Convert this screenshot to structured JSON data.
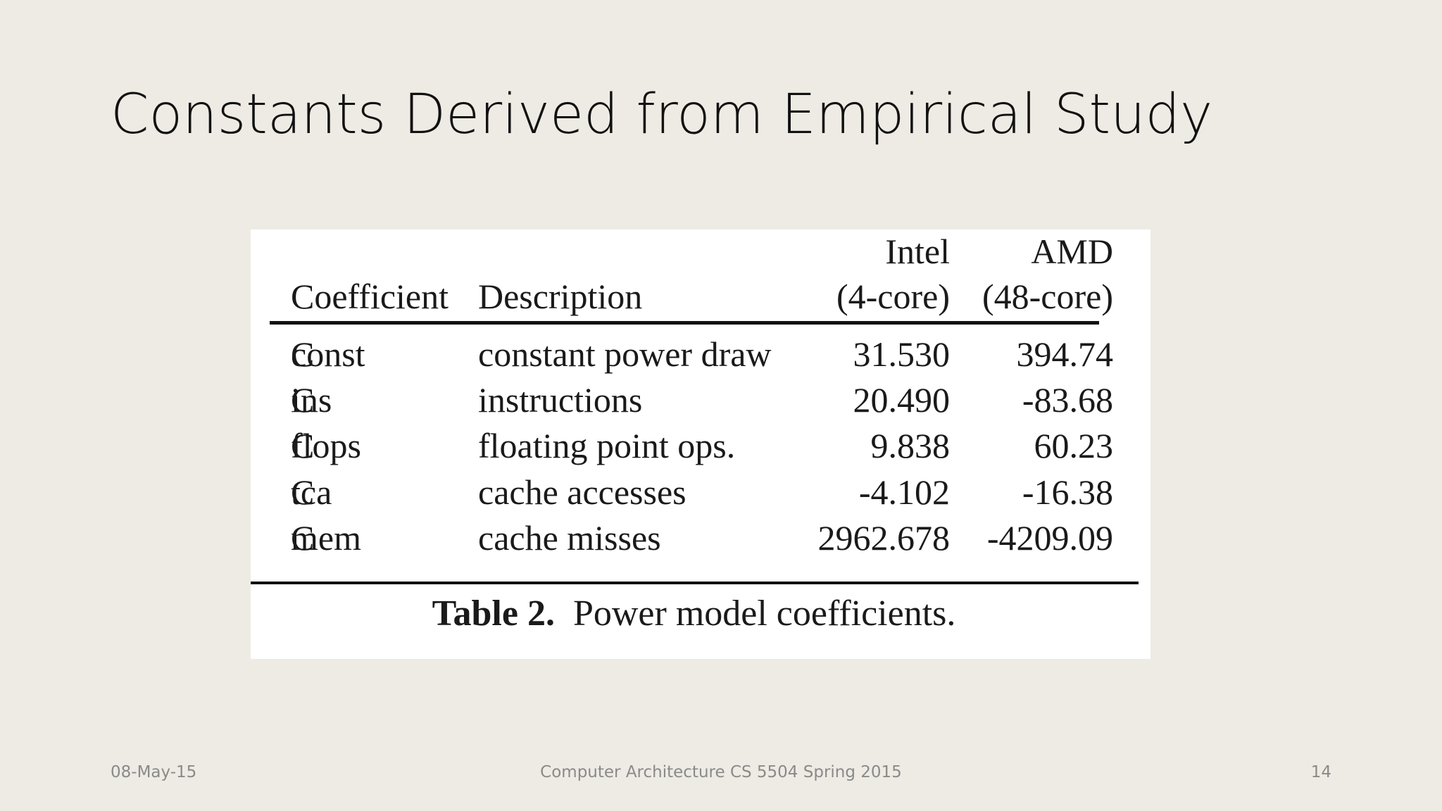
{
  "slide": {
    "title": "Constants Derived from Empirical Study"
  },
  "table": {
    "headers": {
      "coefficient": "Coefficient",
      "description": "Description",
      "intel_top": "Intel",
      "intel_bottom": "(4-core)",
      "amd_top": "AMD",
      "amd_bottom": "(48-core)"
    },
    "rows": [
      {
        "coef": "C",
        "sub": "const",
        "description": "constant power draw",
        "intel": "31.530",
        "amd": "394.74"
      },
      {
        "coef": "C",
        "sub": "ins",
        "description": "instructions",
        "intel": "20.490",
        "amd": "-83.68"
      },
      {
        "coef": "C",
        "sub": "flops",
        "description": "floating point ops.",
        "intel": "9.838",
        "amd": "60.23"
      },
      {
        "coef": "C",
        "sub": "tca",
        "description": "cache accesses",
        "intel": "-4.102",
        "amd": "-16.38"
      },
      {
        "coef": "C",
        "sub": "mem",
        "description": "cache misses",
        "intel": "2962.678",
        "amd": "-4209.09"
      }
    ],
    "caption_label": "Table 2.",
    "caption_text": "Power model coefficients."
  },
  "footer": {
    "date": "08-May-15",
    "center": "Computer Architecture CS 5504 Spring 2015",
    "page": "14"
  }
}
